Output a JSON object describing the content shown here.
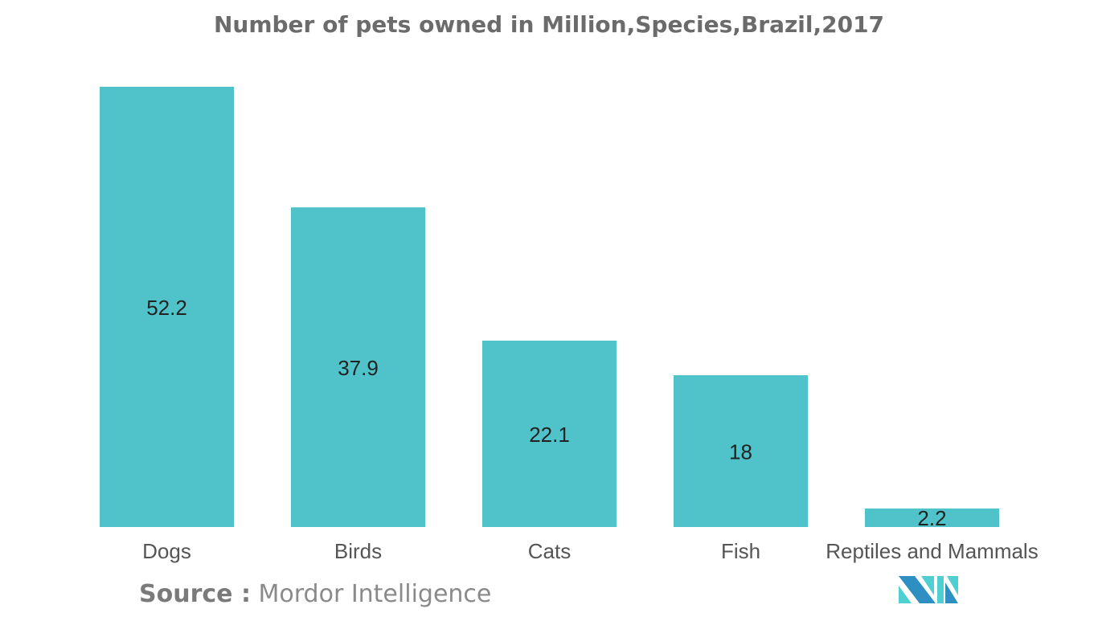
{
  "chart_data": {
    "type": "bar",
    "title": "Number of pets owned in Million,Species,Brazil,2017",
    "categories": [
      "Dogs",
      "Birds",
      "Cats",
      "Fish",
      "Reptiles and Mammals"
    ],
    "values": [
      52.2,
      37.9,
      22.1,
      18,
      2.2
    ],
    "data_labels": [
      "52.2",
      "37.9",
      "22.1",
      "18",
      "2.2"
    ],
    "xlabel": "",
    "ylabel": "",
    "ylim": [
      0,
      52.2
    ],
    "grid": false,
    "bar_color": "#50c3ca"
  },
  "source": {
    "label": "Source :",
    "text": "Mordor Intelligence"
  },
  "logo": {
    "colors": [
      "#2e8fc2",
      "#4ecfd2"
    ]
  }
}
